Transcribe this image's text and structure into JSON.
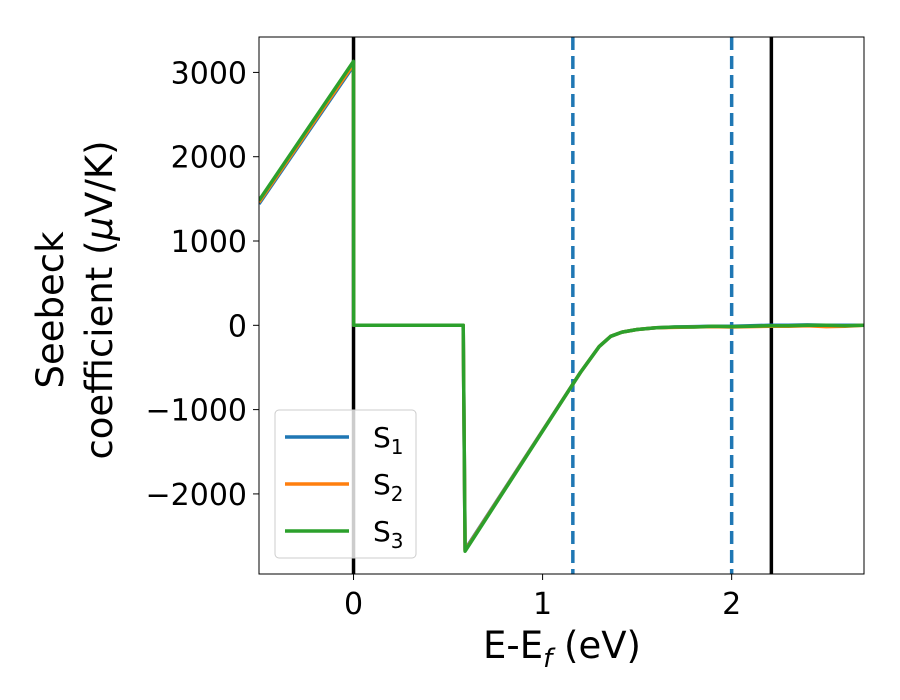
{
  "chart_data": {
    "type": "line",
    "xlabel": "E-E",
    "xlabel_sub": "f",
    "xlabel_unit": " (eV)",
    "ylabel_line1": "Seebeck",
    "ylabel_line2": "coefficient  (",
    "ylabel_mu": "μ",
    "ylabel_unit": "V/K)",
    "xlim": [
      -0.5,
      2.7
    ],
    "ylim": [
      -2950,
      3420
    ],
    "xticks": [
      0,
      1,
      2
    ],
    "xtick_labels": [
      "0",
      "1",
      "2"
    ],
    "yticks": [
      3000,
      2000,
      1000,
      0,
      -1000,
      -2000
    ],
    "ytick_labels": [
      "3000",
      "2000",
      "1000",
      "0",
      "−1000",
      "−2000"
    ],
    "legend_placement": "lower-left",
    "grid": false,
    "vlines": [
      {
        "x": 0,
        "style": "solid",
        "color": "#000000"
      },
      {
        "x": 2.21,
        "style": "solid",
        "color": "#000000"
      },
      {
        "x": 1.16,
        "style": "dashed",
        "color": "#1f77b4"
      },
      {
        "x": 2.0,
        "style": "dashed",
        "color": "#1f77b4"
      }
    ],
    "series": [
      {
        "name": "S",
        "name_sub": "1",
        "color": "#1f77b4",
        "x": [
          -0.5,
          0.0,
          0.001,
          0.58,
          0.59,
          1.2,
          1.3,
          1.36,
          1.42,
          1.5,
          1.6,
          1.7,
          1.8,
          1.9,
          2.0,
          2.1,
          2.2,
          2.3,
          2.4,
          2.5,
          2.6,
          2.7
        ],
        "y": [
          1440,
          3080,
          0,
          0,
          -2660,
          -560,
          -250,
          -130,
          -80,
          -50,
          -30,
          -20,
          -15,
          -10,
          -10,
          -5,
          0,
          0,
          5,
          0,
          0,
          0
        ]
      },
      {
        "name": "S",
        "name_sub": "2",
        "color": "#ff7f0e",
        "x": [
          -0.5,
          0.0,
          0.001,
          0.58,
          0.59,
          1.2,
          1.3,
          1.36,
          1.42,
          1.5,
          1.6,
          1.7,
          1.8,
          1.9,
          2.0,
          2.1,
          2.2,
          2.3,
          2.4,
          2.5,
          2.6,
          2.7
        ],
        "y": [
          1460,
          3100,
          0,
          0,
          -2670,
          -560,
          -250,
          -130,
          -80,
          -50,
          -30,
          -25,
          -20,
          -15,
          -20,
          -15,
          -10,
          -10,
          -5,
          -15,
          -10,
          0
        ]
      },
      {
        "name": "S",
        "name_sub": "3",
        "color": "#2ca02c",
        "x": [
          -0.5,
          0.0,
          0.001,
          0.58,
          0.59,
          1.2,
          1.3,
          1.36,
          1.42,
          1.5,
          1.6,
          1.7,
          1.8,
          1.9,
          2.0,
          2.1,
          2.2,
          2.3,
          2.4,
          2.5,
          2.6,
          2.7
        ],
        "y": [
          1480,
          3130,
          0,
          0,
          -2680,
          -560,
          -250,
          -130,
          -80,
          -50,
          -30,
          -20,
          -20,
          -10,
          -15,
          -10,
          -5,
          -5,
          0,
          0,
          -5,
          0
        ]
      }
    ]
  }
}
